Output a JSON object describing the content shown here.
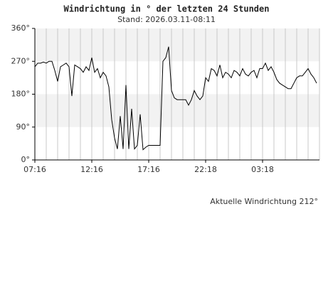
{
  "chart_data": {
    "type": "line",
    "title": "Windrichtung in ° der letzten 24 Stunden",
    "subtitle": "Stand: 2026.03.11-08:11",
    "annotation": "Aktuelle Windrichtung 212°",
    "color": "#000000",
    "values": [
      255,
      265,
      265,
      268,
      265,
      270,
      270,
      245,
      215,
      255,
      260,
      265,
      255,
      175,
      260,
      255,
      250,
      240,
      255,
      245,
      280,
      240,
      250,
      225,
      240,
      230,
      200,
      110,
      60,
      30,
      120,
      30,
      205,
      30,
      140,
      30,
      40,
      125,
      28,
      35,
      40,
      40,
      40,
      40,
      40,
      270,
      280,
      310,
      190,
      170,
      165,
      165,
      165,
      165,
      150,
      165,
      190,
      175,
      165,
      175,
      225,
      215,
      250,
      245,
      230,
      260,
      225,
      240,
      235,
      225,
      245,
      240,
      230,
      250,
      235,
      230,
      240,
      245,
      225,
      250,
      250,
      265,
      245,
      255,
      240,
      220,
      210,
      205,
      200,
      195,
      195,
      210,
      225,
      230,
      230,
      240,
      250,
      235,
      225,
      210
    ],
    "xlim": [
      0,
      100
    ],
    "xticks": [
      {
        "value": 0,
        "label": "07:16"
      },
      {
        "value": 20,
        "label": "12:16"
      },
      {
        "value": 40,
        "label": "17:16"
      },
      {
        "value": 60,
        "label": "22:18"
      },
      {
        "value": 80,
        "label": "03:18"
      }
    ],
    "ylim": [
      0,
      360
    ],
    "yticks": [
      {
        "value": 0,
        "label": "0°"
      },
      {
        "value": 90,
        "label": "90°"
      },
      {
        "value": 180,
        "label": "180°"
      },
      {
        "value": 270,
        "label": "270°"
      },
      {
        "value": 360,
        "label": "360°"
      }
    ],
    "grid": true
  }
}
